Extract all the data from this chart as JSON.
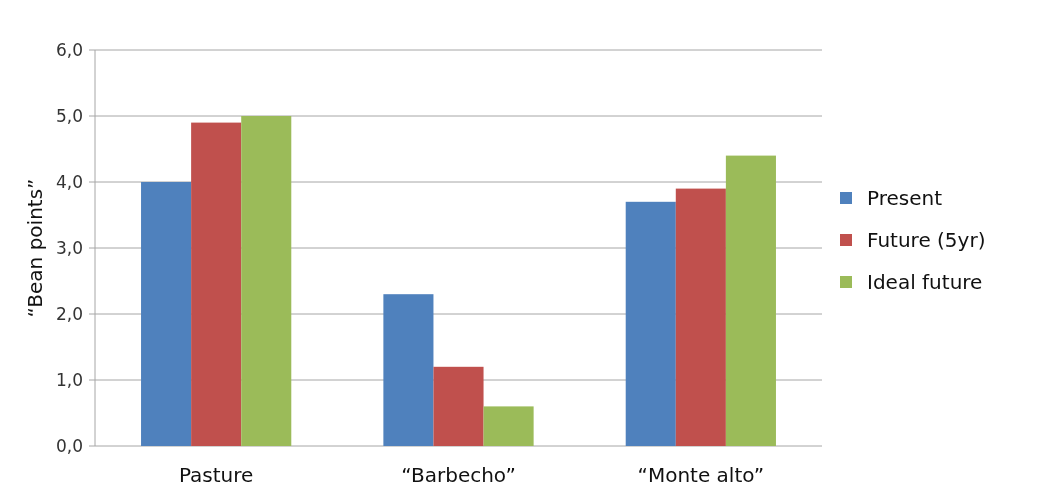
{
  "chart_data": {
    "type": "bar",
    "ylabel": "“Bean points”",
    "categories": [
      "Pasture",
      "“Barbecho”",
      "“Monte alto”"
    ],
    "series": [
      {
        "name": "Present",
        "color": "#4f81bd",
        "values": [
          4.0,
          2.3,
          3.7
        ]
      },
      {
        "name": "Future (5yr)",
        "color": "#c0504d",
        "values": [
          4.9,
          1.2,
          3.9
        ]
      },
      {
        "name": "Ideal future",
        "color": "#9bbb59",
        "values": [
          5.0,
          0.6,
          4.4
        ]
      }
    ],
    "ylim": [
      0,
      6
    ],
    "yticks": [
      {
        "value": 0,
        "label": "0,0"
      },
      {
        "value": 1,
        "label": "1,0"
      },
      {
        "value": 2,
        "label": "2,0"
      },
      {
        "value": 3,
        "label": "3,0"
      },
      {
        "value": 4,
        "label": "4,0"
      },
      {
        "value": 5,
        "label": "5,0"
      },
      {
        "value": 6,
        "label": "6,0"
      }
    ],
    "grid": "y",
    "legend": "right"
  }
}
